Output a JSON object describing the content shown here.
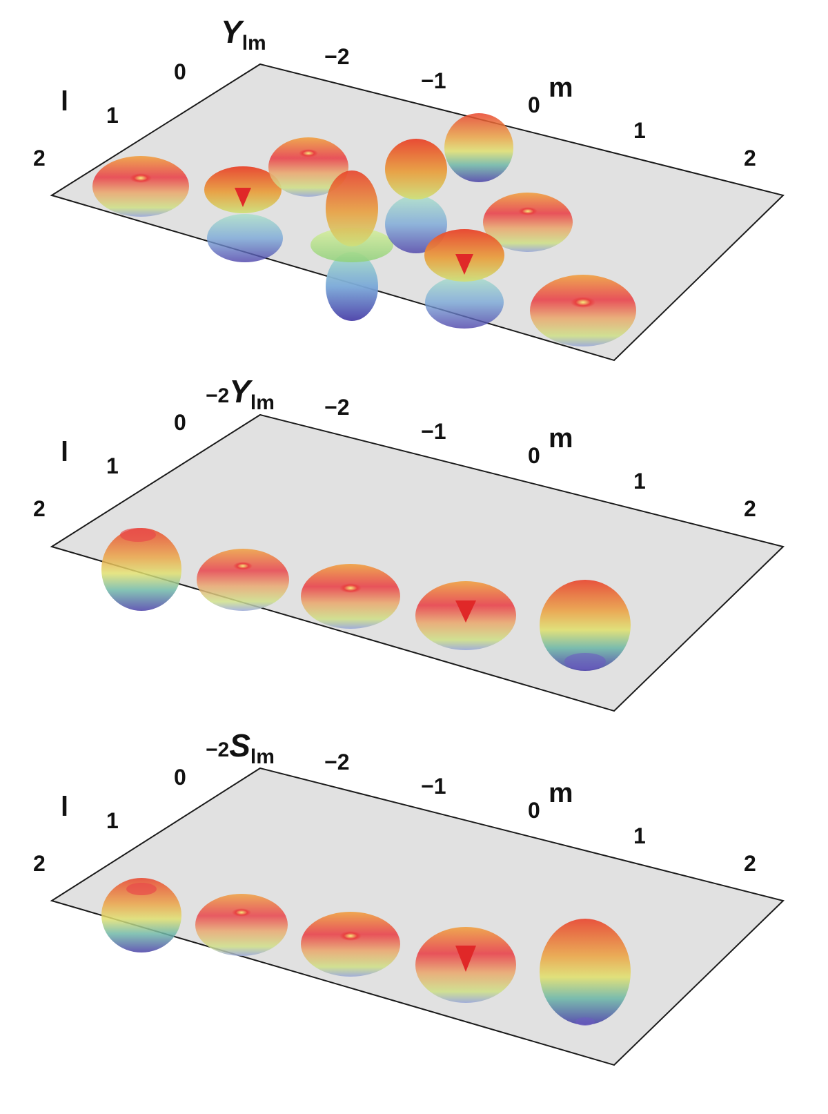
{
  "panels": [
    {
      "title_prefix": "",
      "title_symbol": "Y",
      "title_subscript": "lm",
      "axis_l": "l",
      "axis_m": "m",
      "l_ticks": [
        "0",
        "1",
        "2"
      ],
      "m_ticks": [
        "−2",
        "−1",
        "0",
        "1",
        "2"
      ]
    },
    {
      "title_prefix": "−2",
      "title_symbol": "Y",
      "title_subscript": "lm",
      "axis_l": "l",
      "axis_m": "m",
      "l_ticks": [
        "0",
        "1",
        "2"
      ],
      "m_ticks": [
        "−2",
        "−1",
        "0",
        "1",
        "2"
      ]
    },
    {
      "title_prefix": "−2",
      "title_symbol": "S",
      "title_subscript": "lm",
      "axis_l": "l",
      "axis_m": "m",
      "l_ticks": [
        "0",
        "1",
        "2"
      ],
      "m_ticks": [
        "−2",
        "−1",
        "0",
        "1",
        "2"
      ]
    }
  ],
  "colors": {
    "plane_fill": "#dcdcdc",
    "plane_stroke": "#1a1a1a",
    "surface_top": "#e8432b",
    "surface_mid": "#e8df5a",
    "surface_low": "#7fc6c0",
    "surface_bottom": "#4a3fa8"
  }
}
